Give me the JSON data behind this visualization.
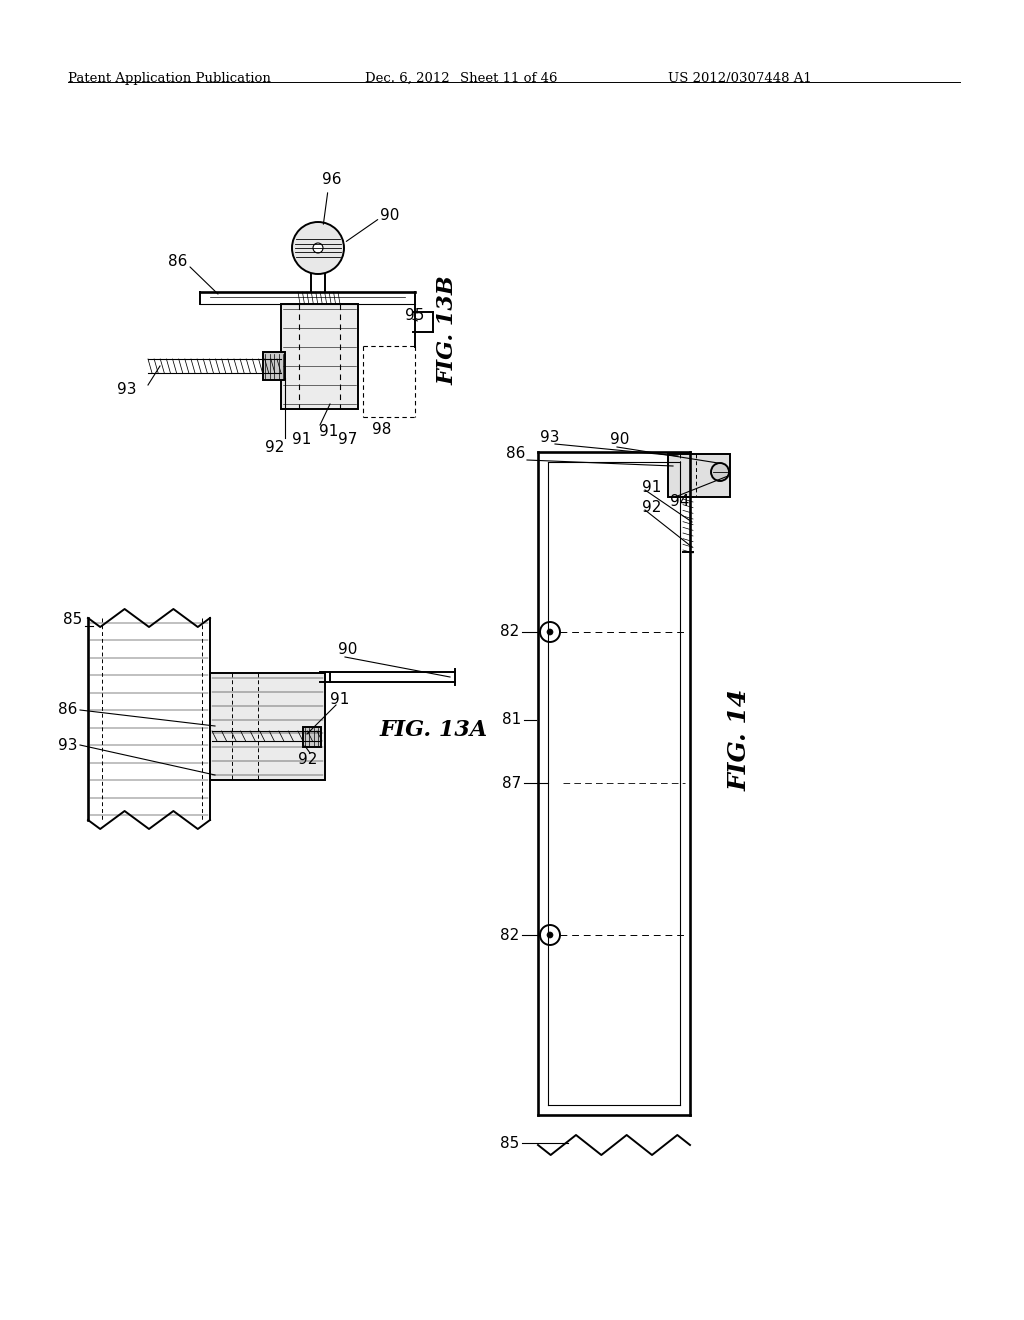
{
  "bg_color": "#ffffff",
  "header_left": "Patent Application Publication",
  "header_mid": "Dec. 6, 2012",
  "header_sheet": "Sheet 11 of 46",
  "header_right": "US 2012/0307448 A1",
  "fig13b_label": "FIG. 13B",
  "fig13a_label": "FIG. 13A",
  "fig14_label": "FIG. 14",
  "line_color": "#000000",
  "lw": 1.4,
  "tlw": 0.8
}
